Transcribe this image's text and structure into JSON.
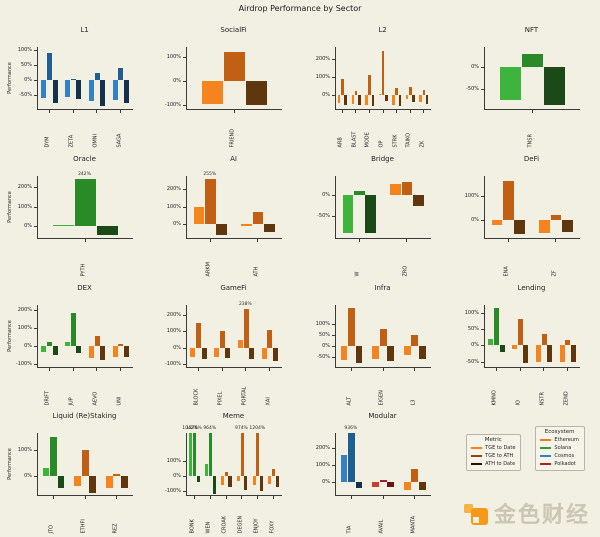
{
  "page": {
    "title": "Airdrop Performance by Sector",
    "background": "#f2efe3"
  },
  "ylabel": "Performance",
  "metric_order": [
    "tge_to_date",
    "tge_to_ath",
    "ath_to_date"
  ],
  "colors": {
    "eth": [
      "#f5841f",
      "#c15f15",
      "#5f370e"
    ],
    "sol": [
      "#3fb43d",
      "#2b8a28",
      "#1b4a18"
    ],
    "cosmos": [
      "#3181c4",
      "#1d5e93",
      "#15324d"
    ],
    "dot": [
      "#d03a30",
      "#a32024",
      "#6e1212"
    ],
    "axis": "#3a3a3a",
    "text": "#1a1a1a"
  },
  "legend": {
    "metric": {
      "title": "Metric",
      "items": [
        {
          "label": "TGE to Date",
          "color": "#f5841f"
        },
        {
          "label": "TGE to ATH",
          "color": "#8f440d"
        },
        {
          "label": "ATH to Date",
          "color": "#221509"
        }
      ]
    },
    "ecosystem": {
      "title": "Ecosystem",
      "items": [
        {
          "label": "Ethereum",
          "color": "#e8801a"
        },
        {
          "label": "Solana",
          "color": "#2f9e33"
        },
        {
          "label": "Cosmos",
          "color": "#2f82c3"
        },
        {
          "label": "Polkadot",
          "color": "#b01f24"
        }
      ]
    }
  },
  "watermark": {
    "text": "金色财经"
  },
  "chart_data": [
    {
      "type": "bar",
      "title": "L1",
      "unit": "%",
      "ylabel": "Performance",
      "ylim": [
        -95,
        110
      ],
      "yticks": [
        100,
        50,
        0,
        -50
      ],
      "groups": [
        {
          "token": "DYM",
          "ecosystem": "cosmos",
          "values": {
            "tge_to_date": -60,
            "tge_to_ath": 90,
            "ath_to_date": -75
          }
        },
        {
          "token": "ZETA",
          "ecosystem": "cosmos",
          "values": {
            "tge_to_date": -55,
            "tge_to_ath": 5,
            "ath_to_date": -62
          }
        },
        {
          "token": "OMNI",
          "ecosystem": "cosmos",
          "values": {
            "tge_to_date": -70,
            "tge_to_ath": 25,
            "ath_to_date": -85
          }
        },
        {
          "token": "SAGA",
          "ecosystem": "cosmos",
          "values": {
            "tge_to_date": -65,
            "tge_to_ath": 40,
            "ath_to_date": -75
          }
        }
      ]
    },
    {
      "type": "bar",
      "title": "SocialFi",
      "unit": "%",
      "ylim": [
        -115,
        140
      ],
      "yticks": [
        100,
        0,
        -100
      ],
      "groups": [
        {
          "token": "FRIEND",
          "ecosystem": "eth",
          "values": {
            "tge_to_date": -95,
            "tge_to_ath": 120,
            "ath_to_date": -98
          }
        }
      ]
    },
    {
      "type": "bar",
      "title": "L2",
      "unit": "%",
      "ylim": [
        -80,
        270
      ],
      "yticks": [
        200,
        100,
        0
      ],
      "groups": [
        {
          "token": "ARB",
          "ecosystem": "eth",
          "values": {
            "tge_to_date": -45,
            "tge_to_ath": 90,
            "ath_to_date": -55
          }
        },
        {
          "token": "BLAST",
          "ecosystem": "eth",
          "values": {
            "tge_to_date": -50,
            "tge_to_ath": 20,
            "ath_to_date": -60
          }
        },
        {
          "token": "MODE",
          "ecosystem": "eth",
          "values": {
            "tge_to_date": -55,
            "tge_to_ath": 110,
            "ath_to_date": -65
          }
        },
        {
          "token": "OP",
          "ecosystem": "eth",
          "values": {
            "tge_to_date": 5,
            "tge_to_ath": 250,
            "ath_to_date": -35
          }
        },
        {
          "token": "STRK",
          "ecosystem": "eth",
          "values": {
            "tge_to_date": -55,
            "tge_to_ath": 40,
            "ath_to_date": -65
          }
        },
        {
          "token": "TAIKO",
          "ecosystem": "eth",
          "values": {
            "tge_to_date": -25,
            "tge_to_ath": 45,
            "ath_to_date": -40
          }
        },
        {
          "token": "ZK",
          "ecosystem": "eth",
          "values": {
            "tge_to_date": -40,
            "tge_to_ath": 25,
            "ath_to_date": -50
          }
        }
      ]
    },
    {
      "type": "bar",
      "title": "NFT",
      "unit": "%",
      "ylim": [
        -95,
        45
      ],
      "yticks": [
        0,
        -50
      ],
      "groups": [
        {
          "token": "TNSR",
          "ecosystem": "sol",
          "values": {
            "tge_to_date": -75,
            "tge_to_ath": 30,
            "ath_to_date": -85
          }
        }
      ]
    },
    {
      "type": "bar",
      "title": "Oracle",
      "unit": "%",
      "ylabel": "Performance",
      "ylim": [
        -60,
        260
      ],
      "yticks": [
        200,
        100,
        0
      ],
      "groups": [
        {
          "token": "PYTH",
          "ecosystem": "sol",
          "values": {
            "tge_to_date": 8,
            "tge_to_ath": 242,
            "ath_to_date": -45
          },
          "labels": {
            "tge_to_ath": "242%"
          }
        }
      ]
    },
    {
      "type": "bar",
      "title": "AI",
      "unit": "%",
      "ylim": [
        -75,
        275
      ],
      "yticks": [
        200,
        100,
        0
      ],
      "groups": [
        {
          "token": "ARKM",
          "ecosystem": "eth",
          "values": {
            "tge_to_date": 100,
            "tge_to_ath": 255,
            "ath_to_date": -60
          },
          "labels": {
            "tge_to_ath": "255%"
          }
        },
        {
          "token": "ATH",
          "ecosystem": "eth",
          "values": {
            "tge_to_date": -5,
            "tge_to_ath": 70,
            "ath_to_date": -40
          }
        }
      ]
    },
    {
      "type": "bar",
      "title": "Bridge",
      "unit": "%",
      "ylim": [
        -100,
        45
      ],
      "yticks": [
        0,
        -50
      ],
      "groups": [
        {
          "token": "W",
          "ecosystem": "sol",
          "values": {
            "tge_to_date": -88,
            "tge_to_ath": 10,
            "ath_to_date": -90
          }
        },
        {
          "token": "ZRO",
          "ecosystem": "eth",
          "values": {
            "tge_to_date": 25,
            "tge_to_ath": 30,
            "ath_to_date": -25
          }
        }
      ]
    },
    {
      "type": "bar",
      "title": "DeFi",
      "unit": "%",
      "ylim": [
        -70,
        180
      ],
      "yticks": [
        100,
        0
      ],
      "groups": [
        {
          "token": "ENA",
          "ecosystem": "eth",
          "values": {
            "tge_to_date": -20,
            "tge_to_ath": 160,
            "ath_to_date": -55
          }
        },
        {
          "token": "ZF",
          "ecosystem": "eth",
          "values": {
            "tge_to_date": -50,
            "tge_to_ath": 20,
            "ath_to_date": -45
          }
        }
      ]
    },
    {
      "type": "bar",
      "title": "DEX",
      "unit": "%",
      "ylabel": "Performance",
      "ylim": [
        -115,
        230
      ],
      "yticks": [
        200,
        100,
        0,
        -100
      ],
      "groups": [
        {
          "token": "DRIFT",
          "ecosystem": "sol",
          "values": {
            "tge_to_date": -35,
            "tge_to_ath": 20,
            "ath_to_date": -50
          }
        },
        {
          "token": "JUP",
          "ecosystem": "sol",
          "values": {
            "tge_to_date": 20,
            "tge_to_ath": 180,
            "ath_to_date": -40
          }
        },
        {
          "token": "AEVO",
          "ecosystem": "eth",
          "values": {
            "tge_to_date": -70,
            "tge_to_ath": 55,
            "ath_to_date": -78
          }
        },
        {
          "token": "UNI",
          "ecosystem": "eth",
          "values": {
            "tge_to_date": -60,
            "tge_to_ath": 10,
            "ath_to_date": -62
          }
        }
      ]
    },
    {
      "type": "bar",
      "title": "GameFi",
      "unit": "%",
      "ylim": [
        -115,
        265
      ],
      "yticks": [
        200,
        100,
        0,
        -100
      ],
      "groups": [
        {
          "token": "BLOCK",
          "ecosystem": "eth",
          "values": {
            "tge_to_date": -55,
            "tge_to_ath": 150,
            "ath_to_date": -70
          }
        },
        {
          "token": "PIXEL",
          "ecosystem": "eth",
          "values": {
            "tge_to_date": -55,
            "tge_to_ath": 100,
            "ath_to_date": -65
          }
        },
        {
          "token": "PORTAL",
          "ecosystem": "eth",
          "values": {
            "tge_to_date": 50,
            "tge_to_ath": 238,
            "ath_to_date": -70
          },
          "labels": {
            "tge_to_ath": "238%"
          }
        },
        {
          "token": "XAI",
          "ecosystem": "eth",
          "values": {
            "tge_to_date": -70,
            "tge_to_ath": 110,
            "ath_to_date": -80
          }
        }
      ]
    },
    {
      "type": "bar",
      "title": "Infra",
      "unit": "%",
      "ylim": [
        -90,
        185
      ],
      "yticks": [
        100,
        50,
        0,
        -50
      ],
      "groups": [
        {
          "token": "ALT",
          "ecosystem": "eth",
          "values": {
            "tge_to_date": -60,
            "tge_to_ath": 170,
            "ath_to_date": -75
          }
        },
        {
          "token": "EIGEN",
          "ecosystem": "eth",
          "values": {
            "tge_to_date": -55,
            "tge_to_ath": 75,
            "ath_to_date": -65
          }
        },
        {
          "token": "L3",
          "ecosystem": "eth",
          "values": {
            "tge_to_date": -40,
            "tge_to_ath": 50,
            "ath_to_date": -55
          }
        }
      ]
    },
    {
      "type": "bar",
      "title": "Lending",
      "unit": "%",
      "ylim": [
        -65,
        125
      ],
      "yticks": [
        100,
        50,
        0,
        -50
      ],
      "groups": [
        {
          "token": "KMNO",
          "ecosystem": "sol",
          "values": {
            "tge_to_date": 20,
            "tge_to_ath": 115,
            "ath_to_date": -20
          }
        },
        {
          "token": "IO",
          "ecosystem": "eth",
          "values": {
            "tge_to_date": -10,
            "tge_to_ath": 80,
            "ath_to_date": -55
          }
        },
        {
          "token": "NSTR",
          "ecosystem": "eth",
          "values": {
            "tge_to_date": -50,
            "tge_to_ath": 35,
            "ath_to_date": -52
          }
        },
        {
          "token": "ZEND",
          "ecosystem": "eth",
          "values": {
            "tge_to_date": -50,
            "tge_to_ath": 15,
            "ath_to_date": -52
          }
        }
      ]
    },
    {
      "type": "bar",
      "title": "Liquid (Re)Staking",
      "unit": "%",
      "ylabel": "Performance",
      "ylim": [
        -75,
        165
      ],
      "yticks": [
        100,
        0
      ],
      "groups": [
        {
          "token": "JTO",
          "ecosystem": "sol",
          "values": {
            "tge_to_date": 30,
            "tge_to_ath": 150,
            "ath_to_date": -45
          }
        },
        {
          "token": "ETHFI",
          "ecosystem": "eth",
          "values": {
            "tge_to_date": -40,
            "tge_to_ath": 100,
            "ath_to_date": -65
          }
        },
        {
          "token": "REZ",
          "ecosystem": "eth",
          "values": {
            "tge_to_date": -45,
            "tge_to_ath": 8,
            "ath_to_date": -48
          }
        }
      ]
    },
    {
      "type": "bar",
      "title": "Meme",
      "unit": "%",
      "ylim": [
        -125,
        280
      ],
      "yticks": [
        100,
        0,
        -100
      ],
      "groups": [
        {
          "token": "BONK",
          "ecosystem": "sol",
          "values": {
            "tge_to_date": 1042,
            "tge_to_ath": 1376,
            "ath_to_date": -40
          },
          "labels": {
            "tge_to_date": "1042%",
            "tge_to_ath": "1376%"
          }
        },
        {
          "token": "WEN",
          "ecosystem": "sol",
          "values": {
            "tge_to_date": 80,
            "tge_to_ath": 964,
            "ath_to_date": -115
          },
          "labels": {
            "tge_to_ath": "964%"
          }
        },
        {
          "token": "CROAK",
          "ecosystem": "eth",
          "values": {
            "tge_to_date": -60,
            "tge_to_ath": 25,
            "ath_to_date": -70
          }
        },
        {
          "token": "DEGEN",
          "ecosystem": "eth",
          "values": {
            "tge_to_date": -30,
            "tge_to_ath": 974,
            "ath_to_date": -90
          },
          "labels": {
            "tge_to_ath": "974%"
          }
        },
        {
          "token": "ENJOY",
          "ecosystem": "eth",
          "values": {
            "tge_to_date": -60,
            "tge_to_ath": 1204,
            "ath_to_date": -100
          },
          "labels": {
            "tge_to_ath": "1204%"
          }
        },
        {
          "token": "FOXY",
          "ecosystem": "eth",
          "values": {
            "tge_to_date": -50,
            "tge_to_ath": 45,
            "ath_to_date": -70
          }
        }
      ]
    },
    {
      "type": "bar",
      "title": "Modular",
      "unit": "%",
      "ylim": [
        -75,
        285
      ],
      "yticks": [
        200,
        100,
        0
      ],
      "groups": [
        {
          "token": "TIA",
          "ecosystem": "cosmos",
          "values": {
            "tge_to_date": 160,
            "tge_to_ath": 936,
            "ath_to_date": -35
          },
          "labels": {
            "tge_to_ath": "936%"
          }
        },
        {
          "token": "AVAIL",
          "ecosystem": "dot",
          "values": {
            "tge_to_date": -25,
            "tge_to_ath": 15,
            "ath_to_date": -30
          }
        },
        {
          "token": "MANTA",
          "ecosystem": "eth",
          "values": {
            "tge_to_date": -45,
            "tge_to_ath": 80,
            "ath_to_date": -45
          }
        }
      ]
    }
  ]
}
